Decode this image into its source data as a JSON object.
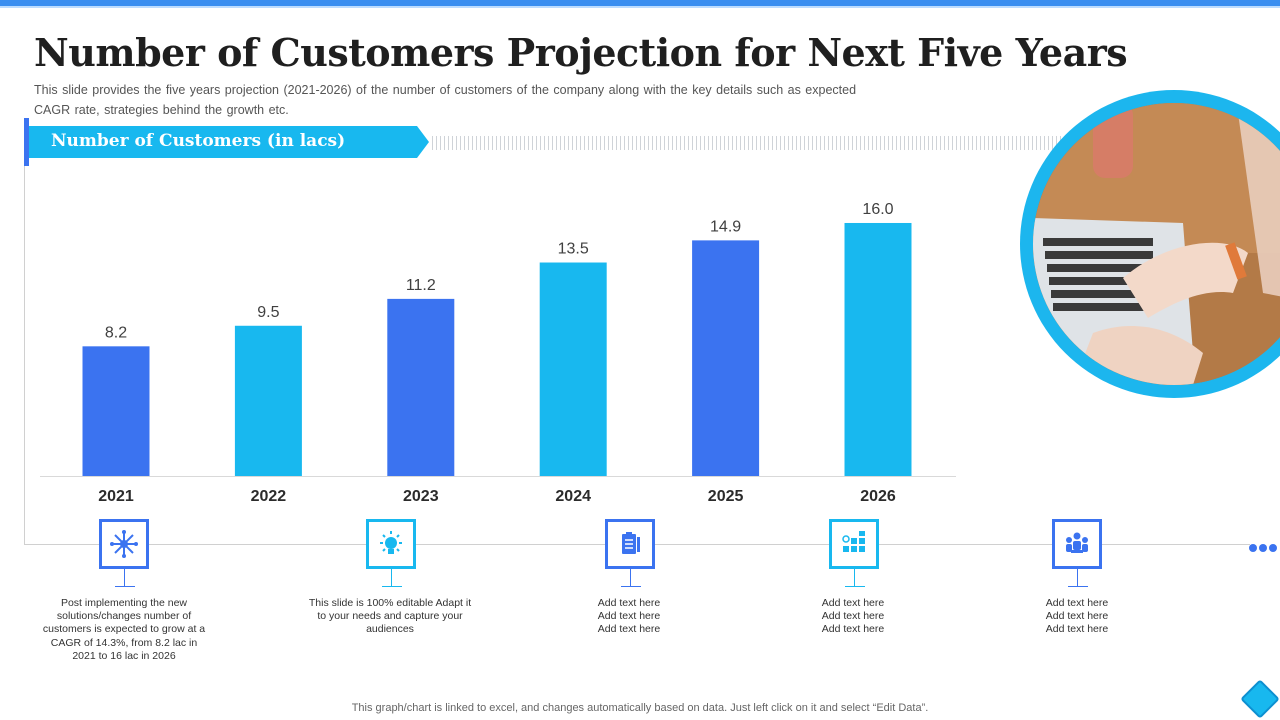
{
  "page": {
    "title": "Number of Customers Projection for Next Five Years",
    "subtitle": "This slide provides  the five  years projection  (2021-2026)  of the number of customers of the company along with the key details such as expected CAGR rate, strategies behind  the growth etc.",
    "footer": "This graph/chart is linked to excel,  and changes automatically based on data. Just left click on it and select “Edit Data”."
  },
  "banner": {
    "label": "Number of Customers (in lacs)"
  },
  "colors": {
    "blue": "#3b73f0",
    "cyan": "#18b8ef",
    "text": "#333333"
  },
  "chart_data": {
    "type": "bar",
    "title": "Number of Customers (in lacs)",
    "categories": [
      "2021",
      "2022",
      "2023",
      "2024",
      "2025",
      "2026"
    ],
    "values": [
      8.2,
      9.5,
      11.2,
      13.5,
      14.9,
      16.0
    ],
    "value_labels": [
      "8.2",
      "9.5",
      "11.2",
      "13.5",
      "14.9",
      "16.0"
    ],
    "bar_colors": [
      "#3b73f0",
      "#18b8ef",
      "#3b73f0",
      "#18b8ef",
      "#3b73f0",
      "#18b8ef"
    ],
    "xlabel": "",
    "ylabel": "",
    "ylim": [
      0,
      17.2
    ],
    "grid": false
  },
  "notes": [
    {
      "icon": "snowflake-network-icon",
      "color": "blue",
      "text": "Post implementing  the new solutions/changes number of customers is expected to grow at a CAGR of 14.3%, from 8.2 lac in 2021 to 16 lac in 2026"
    },
    {
      "icon": "lightbulb-idea-icon",
      "color": "cyan",
      "text": "This slide is 100% editable Adapt it to your needs and capture your audiences"
    },
    {
      "icon": "clipboard-document-icon",
      "color": "blue",
      "text": "Add text here\nAdd text here\nAdd text here"
    },
    {
      "icon": "calculator-grid-icon",
      "color": "cyan",
      "text": "Add text here\nAdd text here\nAdd text here"
    },
    {
      "icon": "team-meeting-icon",
      "color": "blue",
      "text": "Add text here\nAdd text here\nAdd text here"
    }
  ]
}
